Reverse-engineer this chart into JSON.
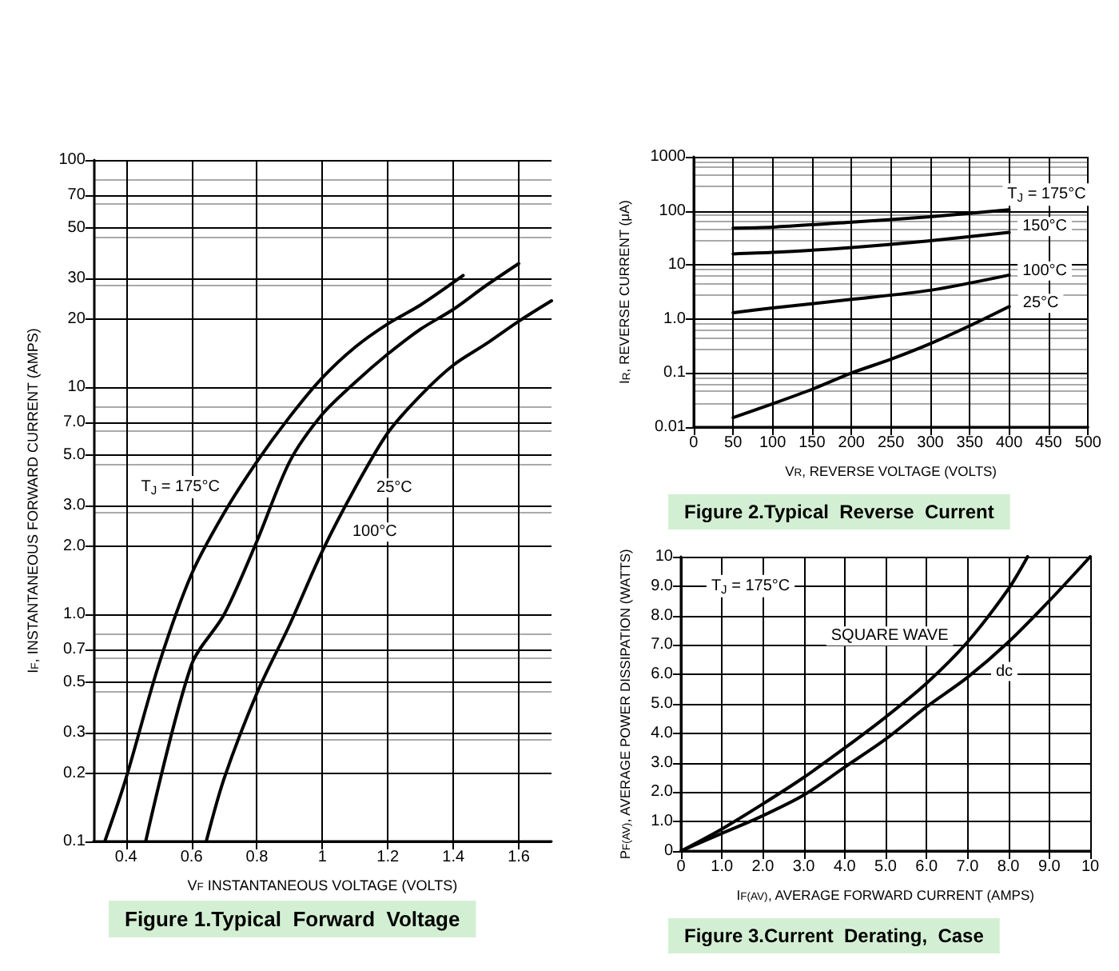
{
  "chart_data": [
    {
      "type": "line",
      "title": "Figure 1.Typical  Forward  Voltage",
      "xlabel": "V$_{F}$ INSTANTANEOUS VOLTAGE (VOLTS)",
      "ylabel": "I$_{F}$, INSTANTANEOUS FORWARD CURRENT (AMPS)",
      "log": "y",
      "grid": true,
      "xlim": [
        0.3,
        1.7
      ],
      "xticks": [
        0.4,
        0.6,
        0.8,
        1.0,
        1.2,
        1.4,
        1.6
      ],
      "ylim": [
        0.1,
        100
      ],
      "yticks": [
        0.1,
        0.2,
        0.3,
        0.5,
        0.7,
        {
          "value": 1,
          "label": "1.0"
        },
        {
          "value": 2,
          "label": "2.0"
        },
        {
          "value": 3,
          "label": "3.0"
        },
        {
          "value": 5,
          "label": "5.0"
        },
        {
          "value": 7,
          "label": "7.0"
        },
        10,
        20,
        30,
        50,
        70,
        100
      ],
      "series": [
        {
          "color": "#000000",
          "x": [
            0.335,
            0.4,
            0.5,
            0.6,
            0.7,
            0.8,
            0.9,
            1.0,
            1.1,
            1.2,
            1.3,
            1.43
          ],
          "values": [
            0.1,
            0.19,
            0.6,
            1.5,
            2.8,
            4.7,
            7.4,
            11,
            15,
            19,
            23,
            31
          ]
        },
        {
          "color": "#000000",
          "x": [
            0.46,
            0.6,
            0.7,
            0.8,
            0.9,
            1.0,
            1.1,
            1.2,
            1.3,
            1.4,
            1.5,
            1.6
          ],
          "values": [
            0.1,
            0.6,
            1.0,
            2.1,
            4.7,
            7.6,
            10.5,
            14,
            18,
            22,
            28,
            35
          ]
        },
        {
          "color": "#000000",
          "x": [
            0.645,
            0.7,
            0.8,
            0.9,
            1.0,
            1.1,
            1.2,
            1.3,
            1.4,
            1.5,
            1.6,
            1.7
          ],
          "values": [
            0.1,
            0.19,
            0.45,
            0.9,
            1.9,
            3.6,
            6.3,
            9.2,
            12.5,
            15.5,
            19.5,
            24
          ]
        }
      ],
      "annotations": [
        "T$_{J}$ = 175°C",
        {
          "text": "100°C",
          "x": 1.16,
          "y": 2.3
        },
        {
          "text": "25°C",
          "x": 1.22,
          "y": 3.6
        }
      ]
    },
    {
      "type": "line",
      "title": "Figure 2.Typical  Reverse  Current",
      "xlabel": "V$_{R}$, REVERSE VOLTAGE (VOLTS)",
      "ylabel": "I$_{R}$, REVERSE CURRENT (μA)",
      "log": "y",
      "grid": true,
      "xlim": [
        0,
        500
      ],
      "xticks": [
        0,
        50,
        100,
        150,
        200,
        250,
        300,
        350,
        400,
        450,
        500
      ],
      "ylim": [
        0.01,
        1000
      ],
      "yticks": [
        0.01,
        0.1,
        {
          "value": 1,
          "label": "1.0"
        },
        10,
        100,
        1000
      ],
      "series": [
        {
          "color": "#000000",
          "x": [
            50,
            100,
            200,
            300,
            400
          ],
          "values": [
            48,
            50,
            62,
            78,
            105
          ]
        },
        {
          "color": "#000000",
          "x": [
            50,
            100,
            200,
            300,
            400
          ],
          "values": [
            16,
            17,
            21,
            28,
            40
          ]
        },
        {
          "color": "#000000",
          "x": [
            50,
            100,
            200,
            300,
            400
          ],
          "values": [
            1.3,
            1.6,
            2.3,
            3.4,
            6.5
          ]
        },
        {
          "color": "#000000",
          "x": [
            50,
            100,
            150,
            200,
            250,
            300,
            350,
            400
          ],
          "values": [
            0.015,
            0.027,
            0.05,
            0.1,
            0.18,
            0.35,
            0.75,
            1.7
          ]
        }
      ],
      "annotations": [
        "T$_{J}$ = 175°C",
        {
          "text": "150°C",
          "x": 445,
          "y": 51
        },
        {
          "text": "100°C",
          "x": 445,
          "y": 7.7
        },
        {
          "text": "25°C",
          "x": 440,
          "y": 1.95
        }
      ]
    },
    {
      "type": "line",
      "title": "Figure 3.Current  Derating,  Case",
      "xlabel": "I$_{F(AV)}$, AVERAGE FORWARD CURRENT (AMPS)",
      "ylabel": "P$_{F(AV)}$, AVERAGE POWER DISSIPATION (WATTS)",
      "grid": true,
      "xlim": [
        0,
        10
      ],
      "xticks": [
        0,
        {
          "value": 1,
          "label": "1.0"
        },
        {
          "value": 2,
          "label": "2.0"
        },
        {
          "value": 3,
          "label": "3.0"
        },
        {
          "value": 4,
          "label": "4.0"
        },
        {
          "value": 5,
          "label": "5.0"
        },
        {
          "value": 6,
          "label": "6.0"
        },
        {
          "value": 7,
          "label": "7.0"
        },
        {
          "value": 8,
          "label": "8.0"
        },
        {
          "value": 9,
          "label": "9.0"
        },
        10
      ],
      "ylim": [
        0,
        10
      ],
      "yticks": [
        0,
        {
          "value": 1,
          "label": "1.0"
        },
        {
          "value": 2,
          "label": "2.0"
        },
        {
          "value": 3,
          "label": "3.0"
        },
        {
          "value": 4,
          "label": "4.0"
        },
        {
          "value": 5,
          "label": "5.0"
        },
        {
          "value": 6,
          "label": "6.0"
        },
        {
          "value": 7,
          "label": "7.0"
        },
        {
          "value": 8,
          "label": "8.0"
        },
        {
          "value": 9,
          "label": "9.0"
        },
        10
      ],
      "series": [
        {
          "color": "#000000",
          "x": [
            0,
            1,
            2,
            3,
            4,
            5,
            6,
            7,
            8,
            8.47
          ],
          "values": [
            0,
            0.75,
            1.6,
            2.5,
            3.5,
            4.55,
            5.7,
            7.1,
            8.9,
            10
          ]
        },
        {
          "color": "#000000",
          "x": [
            0,
            1,
            2,
            3,
            4,
            5,
            6,
            7,
            8,
            9,
            10
          ],
          "values": [
            0,
            0.6,
            1.2,
            1.9,
            2.85,
            3.8,
            4.9,
            5.9,
            7.1,
            8.5,
            10
          ]
        }
      ],
      "annotations": [
        "T$_{J}$ = 175°C",
        "SQUARE WAVE",
        {
          "text": "dc",
          "x": 7.9,
          "y": 6.1
        }
      ]
    }
  ]
}
